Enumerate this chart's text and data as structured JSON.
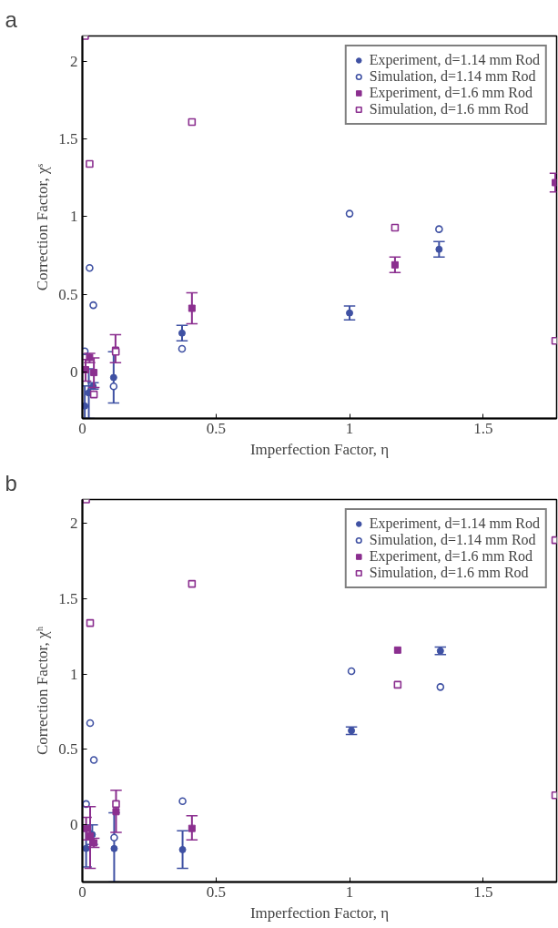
{
  "chart_data": [
    {
      "type": "scatter",
      "title": "a",
      "xlabel": "Imperfection Factor, η",
      "ylabel": "Correction Factor, χˢ",
      "xlim": [
        0,
        1.775
      ],
      "ylim": [
        -0.3,
        2.165
      ],
      "xticks": [
        0,
        0.5,
        1,
        1.5
      ],
      "yticks": [
        0,
        0.5,
        1,
        1.5,
        2
      ],
      "grid": false,
      "legend": "top right",
      "series": [
        {
          "name": "Experiment, d=1.14 mm Rod",
          "color": "#3f51a3",
          "marker": "circle",
          "x": [
            0.009,
            0.024,
            0.04,
            0.117,
            0.373,
            1.0,
            1.335
          ],
          "values": [
            -0.22,
            -0.135,
            -0.093,
            -0.036,
            0.25,
            0.38,
            0.79
          ],
          "errors": [
            [
              -0.3,
              -0.09
            ],
            [
              -0.3,
              0.02
            ],
            [
              -0.11,
              -0.07
            ],
            [
              -0.2,
              0.13
            ],
            [
              0.2,
              0.3
            ],
            [
              0.335,
              0.425
            ],
            [
              0.74,
              0.84
            ]
          ]
        },
        {
          "name": "Simulation, d=1.14 mm Rod",
          "color": "#3f51a3",
          "marker": "circle",
          "x": [
            0.009,
            0.027,
            0.041,
            0.117,
            0.373,
            1.0,
            1.335
          ],
          "values": [
            0.133,
            0.67,
            0.43,
            -0.093,
            0.149,
            1.02,
            0.92
          ]
        },
        {
          "name": "Experiment, d=1.6 mm Rod",
          "color": "#8b2f8f",
          "marker": "square",
          "x": [
            0.012,
            0.027,
            0.043,
            0.124,
            0.41,
            1.17,
            1.77
          ],
          "values": [
            0.014,
            0.093,
            -0.004,
            0.14,
            0.41,
            0.69,
            1.22
          ],
          "errors": [
            [
              -0.06,
              0.08
            ],
            [
              0.06,
              0.12
            ],
            [
              -0.1,
              0.09
            ],
            [
              0.06,
              0.24
            ],
            [
              0.31,
              0.51
            ],
            [
              0.64,
              0.74
            ],
            [
              1.16,
              1.28
            ]
          ]
        },
        {
          "name": "Simulation, d=1.6 mm Rod",
          "color": "#8b2f8f",
          "marker": "square",
          "x": [
            0.01,
            0.027,
            0.043,
            0.125,
            0.41,
            1.17,
            1.77
          ],
          "values": [
            2.165,
            1.34,
            -0.145,
            0.13,
            1.61,
            0.93,
            0.2
          ]
        }
      ]
    },
    {
      "type": "scatter",
      "title": "b",
      "xlabel": "Imperfection Factor, η",
      "ylabel": "Correction Factor, χʰ",
      "xlim": [
        0,
        1.775
      ],
      "ylim": [
        -0.38,
        2.16
      ],
      "xticks": [
        0,
        0.5,
        1,
        1.5
      ],
      "yticks": [
        0,
        0.5,
        1,
        1.5,
        2
      ],
      "grid": false,
      "legend": "top right",
      "series": [
        {
          "name": "Experiment, d=1.14 mm Rod",
          "color": "#3f51a3",
          "marker": "circle",
          "x": [
            0.014,
            0.037,
            0.119,
            0.375,
            1.007,
            1.34
          ],
          "values": [
            -0.157,
            -0.065,
            -0.158,
            -0.165,
            0.625,
            1.155
          ],
          "errors": [
            [
              -0.28,
              -0.04
            ],
            [
              -0.13,
              0.0
            ],
            [
              -0.38,
              0.08
            ],
            [
              -0.29,
              -0.04
            ],
            [
              0.6,
              0.65
            ],
            [
              1.13,
              1.18
            ]
          ]
        },
        {
          "name": "Simulation, d=1.14 mm Rod",
          "color": "#3f51a3",
          "marker": "circle",
          "x": [
            0.014,
            0.029,
            0.043,
            0.119,
            0.375,
            1.007,
            1.34
          ],
          "values": [
            0.138,
            0.675,
            0.43,
            -0.085,
            0.157,
            1.02,
            0.915
          ]
        },
        {
          "name": "Experiment, d=1.6 mm Rod",
          "color": "#8b2f8f",
          "marker": "square",
          "x": [
            0.014,
            0.029,
            0.043,
            0.126,
            0.41,
            1.18
          ],
          "values": [
            -0.024,
            -0.075,
            -0.12,
            0.087,
            -0.024,
            1.16
          ],
          "errors": [
            [
              -0.1,
              0.05
            ],
            [
              -0.29,
              0.12
            ],
            [
              -0.15,
              -0.09
            ],
            [
              -0.05,
              0.23
            ],
            [
              -0.1,
              0.06
            ],
            null
          ]
        },
        {
          "name": "Simulation, d=1.6 mm Rod",
          "color": "#8b2f8f",
          "marker": "square",
          "x": [
            0.014,
            0.029,
            0.126,
            0.41,
            1.18,
            1.77,
            1.77
          ],
          "values": [
            2.16,
            1.34,
            0.138,
            1.6,
            0.93,
            1.89,
            0.196
          ]
        }
      ]
    }
  ]
}
